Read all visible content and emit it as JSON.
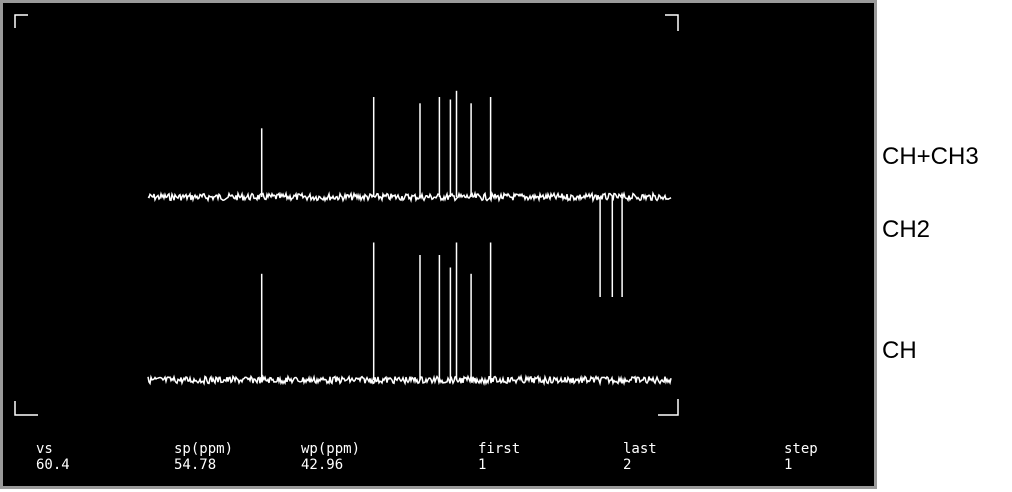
{
  "colors": {
    "screen_bg": "#000000",
    "trace": "#ffffff",
    "frame": "#9a9a9a"
  },
  "params": [
    {
      "label": "vs",
      "value": "60.4"
    },
    {
      "label": "sp(ppm)",
      "value": "54.78"
    },
    {
      "label": "wp(ppm)",
      "value": "42.96"
    },
    {
      "label": "first",
      "value": "1"
    },
    {
      "label": "last",
      "value": "2"
    },
    {
      "label": "step",
      "value": "1"
    }
  ],
  "spectrum_labels": {
    "upper_positive": "CH+CH3",
    "upper_negative": "CH2",
    "lower": "CH"
  },
  "chart_data": {
    "type": "line",
    "xlim_ppm": [
      97.74,
      54.78
    ],
    "series": [
      {
        "name": "CH+CH3",
        "peaks_ppm": [
          88.4,
          79.2,
          75.4,
          73.8,
          72.9,
          72.4,
          71.2,
          69.6,
          60.6,
          59.6,
          58.8
        ],
        "intensity": [
          0.55,
          0.8,
          0.75,
          0.8,
          0.78,
          0.85,
          0.75,
          0.8,
          -0.8,
          -0.8,
          -0.8
        ]
      },
      {
        "name": "CH",
        "peaks_ppm": [
          88.4,
          79.2,
          75.4,
          73.8,
          72.9,
          72.4,
          71.2,
          69.6
        ],
        "intensity": [
          0.85,
          1.1,
          1.0,
          1.0,
          0.9,
          1.1,
          0.85,
          1.1
        ]
      }
    ]
  }
}
